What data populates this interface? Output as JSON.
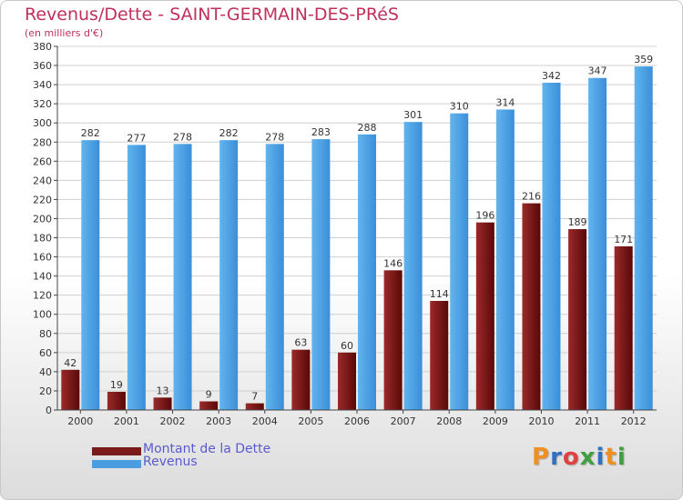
{
  "header": {
    "title": "Revenus/Dette - SAINT-GERMAIN-DES-PRéS",
    "subtitle": "(en milliers d'€)"
  },
  "chart_data": {
    "type": "bar",
    "categories": [
      "2000",
      "2001",
      "2002",
      "2003",
      "2004",
      "2005",
      "2006",
      "2007",
      "2008",
      "2009",
      "2010",
      "2011",
      "2012"
    ],
    "series": [
      {
        "name": "Montant de la Dette",
        "values": [
          42,
          19,
          13,
          9,
          7,
          63,
          60,
          146,
          114,
          196,
          216,
          189,
          171
        ],
        "color": "#7a1a1a"
      },
      {
        "name": "Revenus",
        "values": [
          282,
          277,
          278,
          282,
          278,
          283,
          288,
          301,
          310,
          314,
          342,
          347,
          359
        ],
        "color": "#4a9de0"
      }
    ],
    "ylim": [
      0,
      380
    ],
    "yticks": [
      0,
      20,
      40,
      60,
      80,
      100,
      120,
      140,
      160,
      180,
      200,
      220,
      240,
      260,
      280,
      300,
      320,
      340,
      360,
      380
    ],
    "grid": true,
    "legend_position": "bottom-left"
  },
  "legend": {
    "items": [
      {
        "label": "Montant de la Dette",
        "color": "#7a1a1a"
      },
      {
        "label": "Revenus",
        "color": "#4a9de0"
      }
    ]
  },
  "logo": {
    "letters": [
      "P",
      "r",
      "o",
      "x",
      "i",
      "t",
      "i"
    ],
    "colors": [
      "#f09020",
      "#3070c0",
      "#e04040",
      "#40a040",
      "#3070c0",
      "#f09020",
      "#40a040"
    ]
  }
}
